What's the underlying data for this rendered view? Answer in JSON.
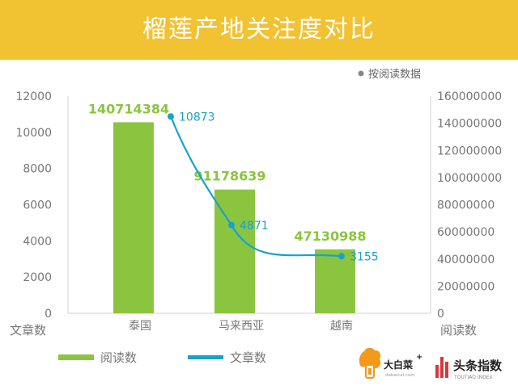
{
  "title": "榴莲产地关注度对比",
  "colors": {
    "banner": "#f1c232",
    "bar": "#8bc53f",
    "line": "#16a2cc",
    "axis_text": "#777777"
  },
  "chart_data": {
    "type": "bar",
    "categories": [
      "泰国",
      "马来西亚",
      "越南"
    ],
    "series": [
      {
        "name": "阅读数",
        "type": "bar",
        "axis": "right",
        "values": [
          140714384,
          91178639,
          47130988
        ],
        "labels": [
          "140714384",
          "91178639",
          "47130988"
        ]
      },
      {
        "name": "文章数",
        "type": "line",
        "axis": "left",
        "values": [
          10873,
          4871,
          3155
        ],
        "labels": [
          "10873",
          "4871",
          "3155"
        ]
      }
    ],
    "left_axis": {
      "label": "文章数",
      "ylim": [
        0,
        12000
      ],
      "ticks": [
        "0",
        "2000",
        "4000",
        "6000",
        "8000",
        "10000",
        "12000"
      ]
    },
    "right_axis": {
      "label": "阅读数",
      "ylim": [
        0,
        160000000
      ],
      "ticks": [
        "0",
        "20000000",
        "40000000",
        "60000000",
        "80000000",
        "100000000",
        "120000000",
        "140000000",
        "160000000"
      ]
    },
    "note": "按阅读数据",
    "legend": [
      "阅读数",
      "文章数"
    ],
    "legend_position": "bottom-left",
    "grid": false
  },
  "logos": {
    "dabaicai": {
      "name": "大白菜",
      "plus": "+",
      "sub": "dabaicai.com"
    },
    "toutiao": {
      "name": "头条指数",
      "sub": "TOUTIAO INDEX"
    }
  }
}
